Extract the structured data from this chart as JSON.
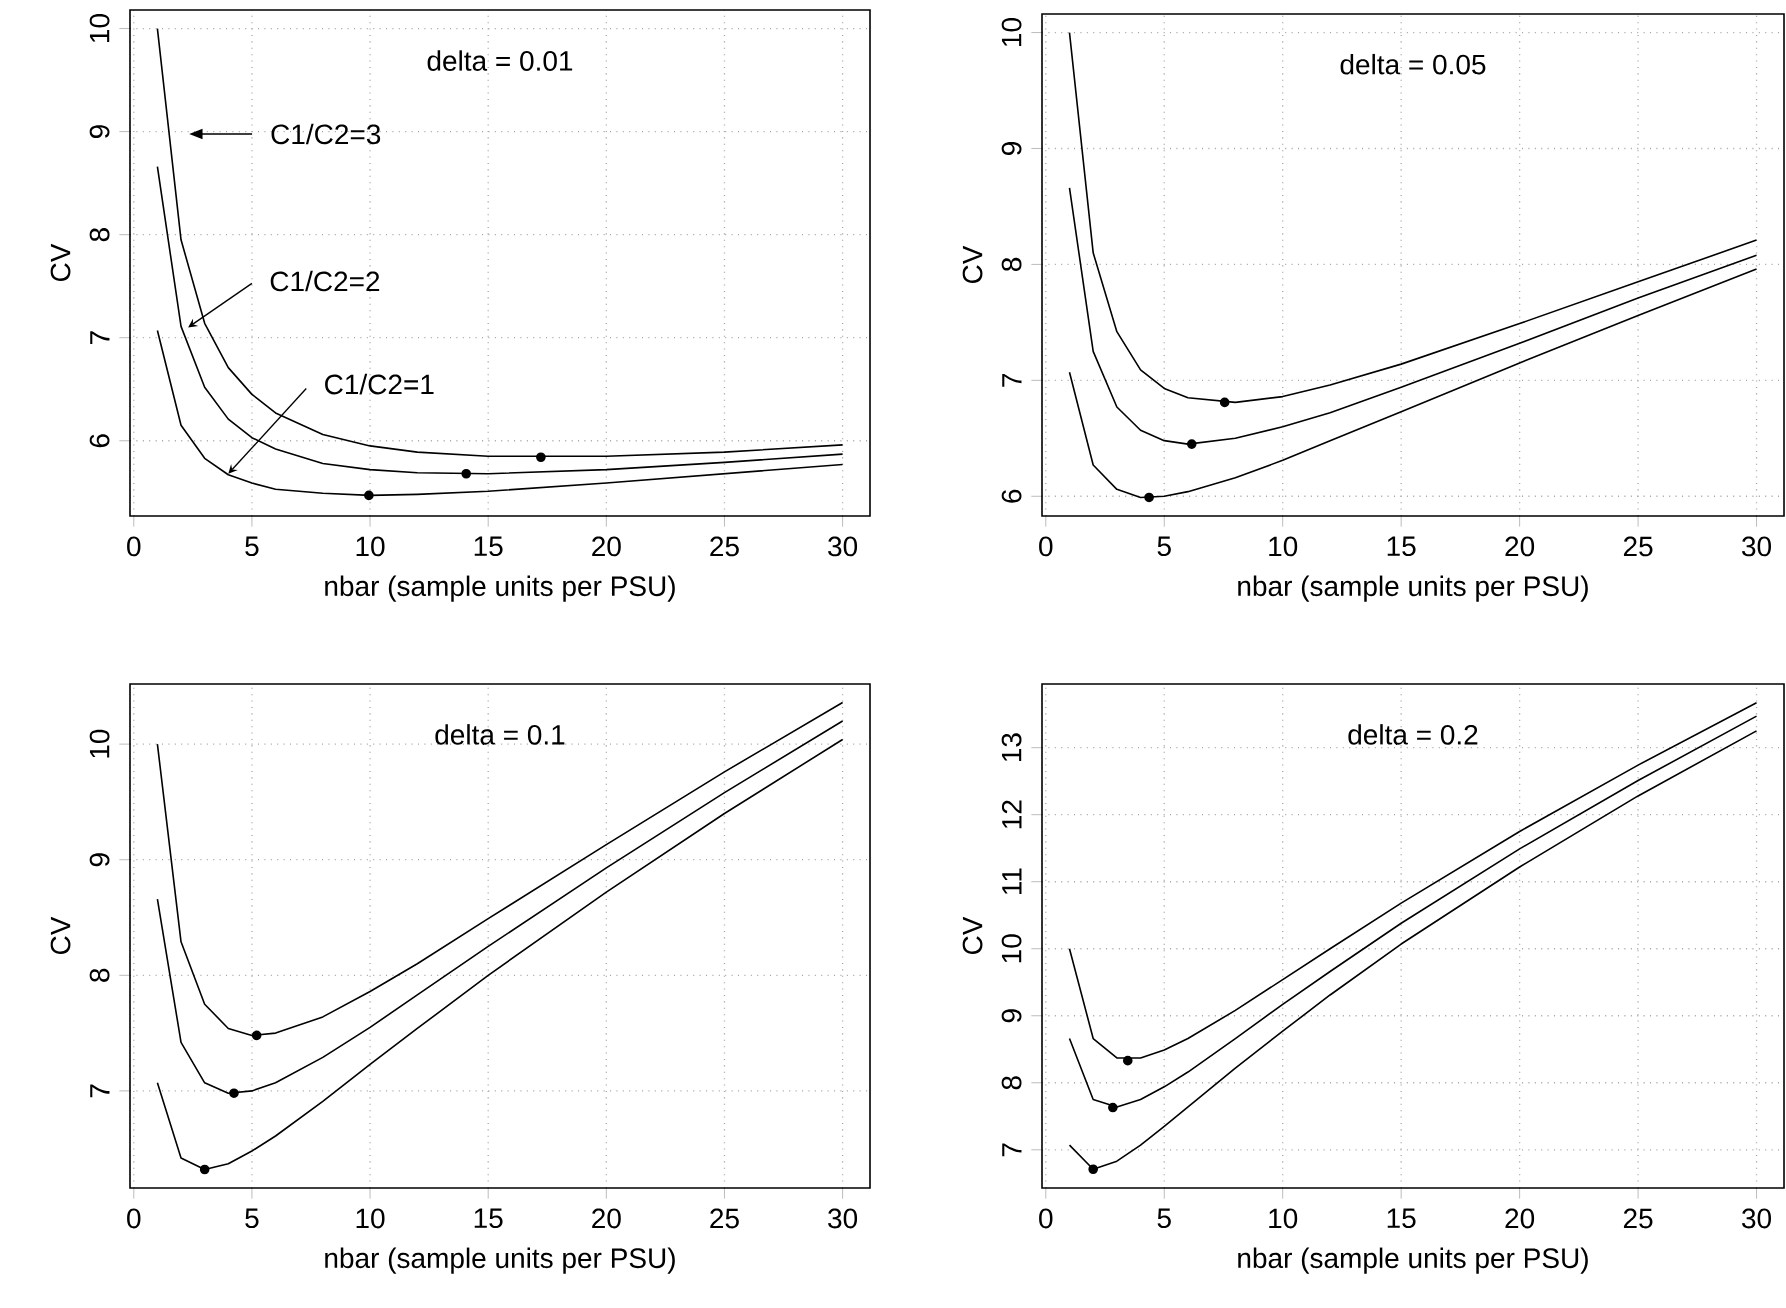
{
  "chart_data": [
    {
      "type": "line",
      "xlabel": "nbar (sample units per PSU)",
      "ylabel": "CV",
      "annotations": [
        "delta = 0.01",
        "C1/C2=3",
        {
          "text": "C1/C2=2",
          "x": 2.3,
          "y": 7.1
        },
        {
          "text": "C1/C2=1",
          "x": 4.0,
          "y": 5.68
        }
      ],
      "x": [
        1,
        2,
        3,
        4,
        5,
        6,
        8,
        10,
        12,
        15,
        20,
        25,
        30
      ],
      "series": [
        {
          "color": "#000000",
          "values": [
            7.07,
            6.15,
            5.83,
            5.67,
            5.59,
            5.53,
            5.49,
            5.47,
            5.48,
            5.51,
            5.59,
            5.68,
            5.77
          ]
        },
        {
          "color": "#000000",
          "values": [
            8.66,
            7.11,
            6.52,
            6.21,
            6.03,
            5.92,
            5.78,
            5.72,
            5.69,
            5.68,
            5.72,
            5.79,
            5.87
          ]
        },
        {
          "color": "#000000",
          "values": [
            10.0,
            7.95,
            7.14,
            6.71,
            6.45,
            6.27,
            6.06,
            5.95,
            5.89,
            5.85,
            5.85,
            5.89,
            5.96
          ]
        },
        {
          "type": "scatter",
          "marker": "circle",
          "color": "#000000",
          "x": [
            9.95,
            14.07,
            17.23
          ],
          "values": [
            5.47,
            5.68,
            5.84
          ]
        }
      ],
      "xlim": [
        -0.16,
        31.16
      ],
      "ylim": [
        5.27,
        10.18
      ],
      "xticks": [
        0,
        5,
        10,
        15,
        20,
        25,
        30
      ],
      "yticks": [
        6,
        7,
        8,
        9,
        10
      ],
      "grid": true
    },
    {
      "type": "line",
      "xlabel": "nbar (sample units per PSU)",
      "ylabel": "CV",
      "annotations": [
        "delta = 0.05"
      ],
      "x": [
        1,
        2,
        3,
        4,
        5,
        6,
        8,
        10,
        12,
        15,
        20,
        25,
        30
      ],
      "series": [
        {
          "color": "#000000",
          "values": [
            7.07,
            6.27,
            6.06,
            5.99,
            6.0,
            6.04,
            6.16,
            6.31,
            6.48,
            6.73,
            7.15,
            7.56,
            7.96
          ]
        },
        {
          "color": "#000000",
          "values": [
            8.66,
            7.25,
            6.77,
            6.57,
            6.48,
            6.45,
            6.5,
            6.6,
            6.72,
            6.94,
            7.32,
            7.71,
            8.08
          ]
        },
        {
          "color": "#000000",
          "values": [
            10.0,
            8.1,
            7.42,
            7.09,
            6.93,
            6.85,
            6.81,
            6.86,
            6.96,
            7.14,
            7.49,
            7.85,
            8.21
          ]
        },
        {
          "type": "scatter",
          "marker": "circle",
          "color": "#000000",
          "x": [
            4.36,
            6.16,
            7.55
          ],
          "values": [
            5.99,
            6.45,
            6.81
          ]
        }
      ],
      "xlim": [
        -0.16,
        31.16
      ],
      "ylim": [
        5.83,
        10.16
      ],
      "xticks": [
        0,
        5,
        10,
        15,
        20,
        25,
        30
      ],
      "yticks": [
        6,
        7,
        8,
        9,
        10
      ],
      "grid": true
    },
    {
      "type": "line",
      "xlabel": "nbar (sample units per PSU)",
      "ylabel": "CV",
      "annotations": [
        "delta = 0.1"
      ],
      "x": [
        1,
        2,
        3,
        4,
        5,
        6,
        8,
        10,
        12,
        15,
        20,
        25,
        30
      ],
      "series": [
        {
          "color": "#000000",
          "values": [
            7.07,
            6.42,
            6.32,
            6.37,
            6.48,
            6.61,
            6.91,
            7.23,
            7.54,
            8.0,
            8.72,
            9.4,
            10.04
          ]
        },
        {
          "color": "#000000",
          "values": [
            8.66,
            7.42,
            7.07,
            6.98,
            7.0,
            7.07,
            7.29,
            7.55,
            7.83,
            8.25,
            8.93,
            9.58,
            10.2
          ]
        },
        {
          "color": "#000000",
          "values": [
            10.0,
            8.29,
            7.75,
            7.54,
            7.48,
            7.5,
            7.64,
            7.86,
            8.1,
            8.49,
            9.13,
            9.76,
            10.36
          ]
        },
        {
          "type": "scatter",
          "marker": "circle",
          "color": "#000000",
          "x": [
            3.0,
            4.24,
            5.2
          ],
          "values": [
            6.32,
            6.98,
            7.48
          ]
        }
      ],
      "xlim": [
        -0.16,
        31.16
      ],
      "ylim": [
        6.16,
        10.52
      ],
      "xticks": [
        0,
        5,
        10,
        15,
        20,
        25,
        30
      ],
      "yticks": [
        7,
        8,
        9,
        10
      ],
      "grid": true
    },
    {
      "type": "line",
      "xlabel": "nbar (sample units per PSU)",
      "ylabel": "CV",
      "annotations": [
        "delta = 0.2"
      ],
      "x": [
        1,
        2,
        3,
        4,
        5,
        6,
        8,
        10,
        12,
        15,
        20,
        25,
        30
      ],
      "series": [
        {
          "color": "#000000",
          "values": [
            7.07,
            6.71,
            6.83,
            7.07,
            7.35,
            7.64,
            8.22,
            8.77,
            9.31,
            10.07,
            11.22,
            12.28,
            13.25
          ]
        },
        {
          "color": "#000000",
          "values": [
            8.66,
            7.75,
            7.64,
            7.75,
            7.94,
            8.16,
            8.66,
            9.17,
            9.66,
            10.38,
            11.49,
            12.51,
            13.47
          ]
        },
        {
          "color": "#000000",
          "values": [
            10.0,
            8.66,
            8.37,
            8.37,
            8.49,
            8.66,
            9.08,
            9.54,
            10.0,
            10.68,
            11.75,
            12.74,
            13.67
          ]
        },
        {
          "type": "scatter",
          "marker": "circle",
          "color": "#000000",
          "x": [
            2.0,
            2.83,
            3.46
          ],
          "values": [
            6.71,
            7.63,
            8.33
          ]
        }
      ],
      "xlim": [
        -0.16,
        31.16
      ],
      "ylim": [
        6.43,
        13.95
      ],
      "xticks": [
        0,
        5,
        10,
        15,
        20,
        25,
        30
      ],
      "yticks": [
        7,
        8,
        9,
        10,
        11,
        12,
        13
      ],
      "grid": true
    }
  ]
}
